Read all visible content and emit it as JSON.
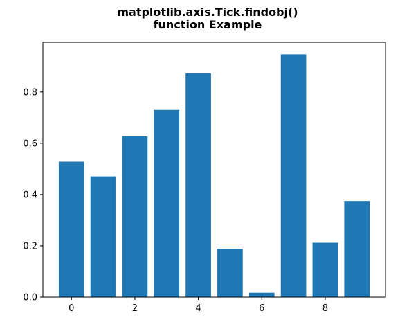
{
  "chart_data": {
    "type": "bar",
    "title_lines": [
      "matplotlib.axis.Tick.findobj()",
      "function Example"
    ],
    "xlabel": "",
    "ylabel": "",
    "x": [
      0,
      1,
      2,
      3,
      4,
      5,
      6,
      7,
      8,
      9
    ],
    "values": [
      0.528,
      0.471,
      0.627,
      0.73,
      0.873,
      0.189,
      0.017,
      0.947,
      0.212,
      0.375
    ],
    "bar_width": 0.8,
    "bar_color": "#1f77b4",
    "xlim": [
      -0.9,
      9.9
    ],
    "ylim": [
      0,
      0.994
    ],
    "xticks": [
      0,
      2,
      4,
      6,
      8
    ],
    "xtick_labels": [
      "0",
      "2",
      "4",
      "6",
      "8"
    ],
    "yticks": [
      0,
      0.2,
      0.4,
      0.6,
      0.8
    ],
    "ytick_labels": [
      "0.0",
      "0.2",
      "0.4",
      "0.6",
      "0.8"
    ],
    "grid": false,
    "legend": "none"
  }
}
